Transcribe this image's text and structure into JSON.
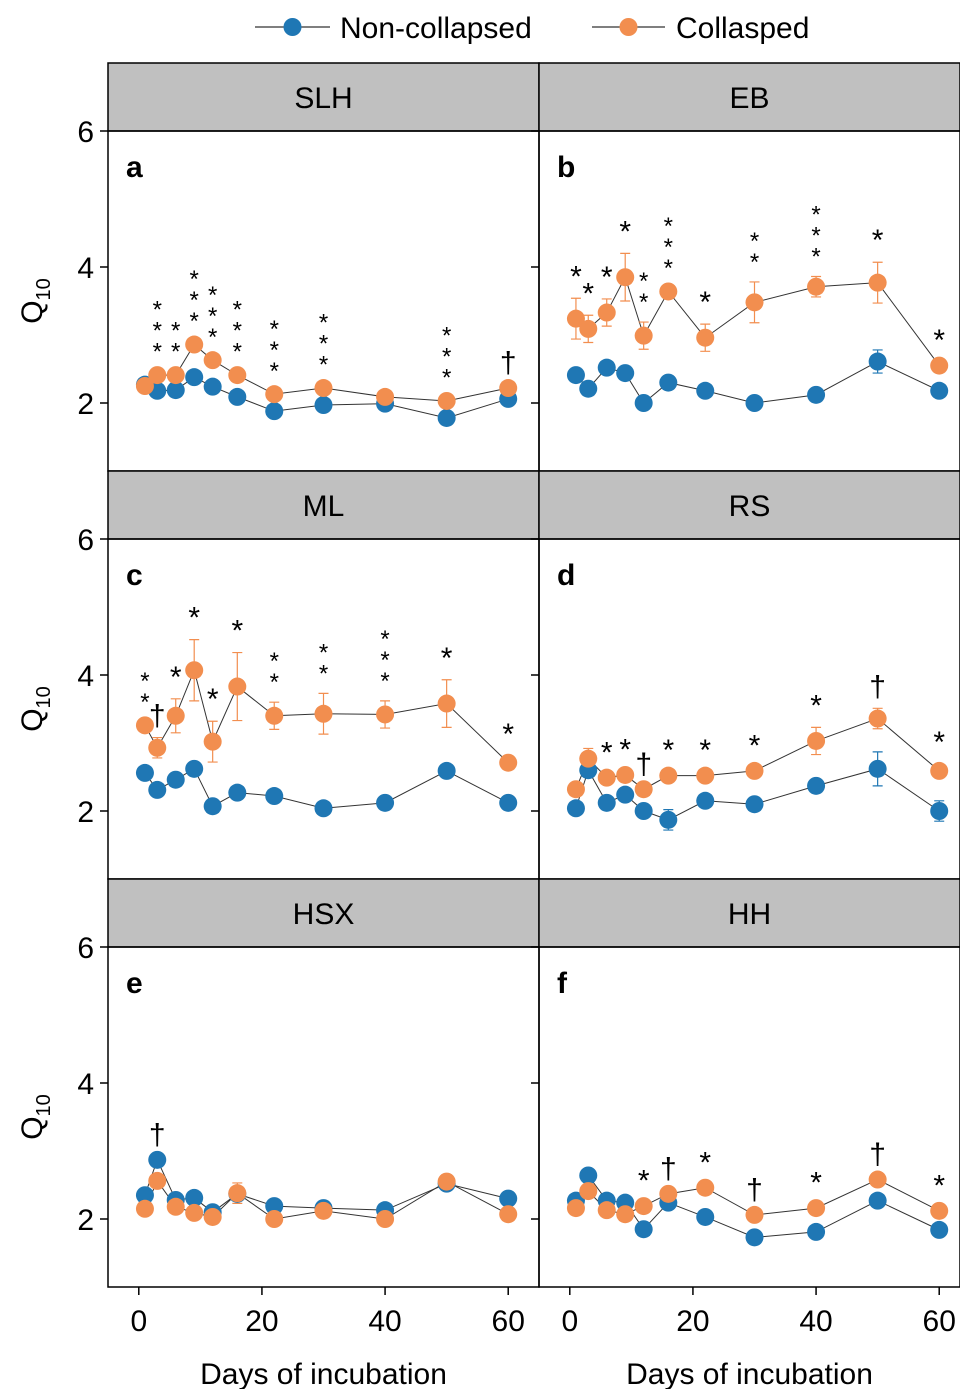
{
  "chart_data": [
    {
      "type": "line",
      "title": "SLH",
      "panel_letter": "a",
      "ylabel": {
        "main": "Q",
        "sub": "10"
      },
      "x": [
        1,
        3,
        6,
        9,
        12,
        16,
        22,
        30,
        40,
        50,
        60
      ],
      "series": [
        {
          "name": "Non-collapsed",
          "color": "#1f77b4",
          "values": [
            2.27,
            2.18,
            2.19,
            2.38,
            2.24,
            2.09,
            1.88,
            1.97,
            1.99,
            1.78,
            2.06
          ],
          "errors": [
            0.05,
            0.05,
            0.05,
            0.05,
            0.05,
            0.05,
            0.05,
            0.05,
            0.05,
            0.05,
            0.05
          ]
        },
        {
          "name": "Collasped",
          "color": "#f28e4f",
          "values": [
            2.25,
            2.41,
            2.41,
            2.86,
            2.63,
            2.41,
            2.13,
            2.22,
            2.09,
            2.03,
            2.22
          ],
          "errors": [
            0.05,
            0.05,
            0.05,
            0.05,
            0.05,
            0.05,
            0.05,
            0.05,
            0.05,
            0.05,
            0.05
          ]
        }
      ],
      "annotations": [
        {
          "x": 3,
          "text": "***"
        },
        {
          "x": 6,
          "text": "**"
        },
        {
          "x": 9,
          "text": "***"
        },
        {
          "x": 12,
          "text": "***"
        },
        {
          "x": 16,
          "text": "***"
        },
        {
          "x": 22,
          "text": "***"
        },
        {
          "x": 30,
          "text": "***"
        },
        {
          "x": 50,
          "text": "***"
        },
        {
          "x": 60,
          "text": "†"
        }
      ],
      "xlim": [
        -5,
        65
      ],
      "xticks": [
        0,
        20,
        40,
        60
      ],
      "ylim": [
        1,
        6
      ],
      "yticks": [
        2,
        4,
        6
      ]
    },
    {
      "type": "line",
      "title": "EB",
      "panel_letter": "b",
      "x": [
        1,
        3,
        6,
        9,
        12,
        16,
        22,
        30,
        40,
        50,
        60
      ],
      "series": [
        {
          "name": "Non-collapsed",
          "color": "#1f77b4",
          "values": [
            2.41,
            2.21,
            2.52,
            2.44,
            2.0,
            2.3,
            2.18,
            2.0,
            2.12,
            2.61,
            2.18
          ],
          "errors": [
            0.05,
            0.1,
            0.05,
            0.1,
            0.05,
            0.05,
            0.05,
            0.05,
            0.05,
            0.17,
            0.05
          ]
        },
        {
          "name": "Collasped",
          "color": "#f28e4f",
          "values": [
            3.24,
            3.09,
            3.33,
            3.85,
            2.99,
            3.64,
            2.96,
            3.48,
            3.71,
            3.77,
            2.55
          ],
          "errors": [
            0.3,
            0.2,
            0.2,
            0.35,
            0.2,
            0.05,
            0.2,
            0.3,
            0.15,
            0.3,
            0.05
          ]
        }
      ],
      "annotations": [
        {
          "x": 1,
          "text": "*"
        },
        {
          "x": 3,
          "text": "*"
        },
        {
          "x": 6,
          "text": "*"
        },
        {
          "x": 9,
          "text": "*"
        },
        {
          "x": 12,
          "text": "**"
        },
        {
          "x": 16,
          "text": "***"
        },
        {
          "x": 22,
          "text": "*"
        },
        {
          "x": 30,
          "text": "**"
        },
        {
          "x": 40,
          "text": "***"
        },
        {
          "x": 50,
          "text": "*"
        },
        {
          "x": 60,
          "text": "*"
        }
      ],
      "xlim": [
        -5,
        65
      ],
      "xticks": [
        0,
        20,
        40,
        60
      ],
      "ylim": [
        1,
        6
      ],
      "yticks": [
        2,
        4,
        6
      ]
    },
    {
      "type": "line",
      "title": "ML",
      "panel_letter": "c",
      "ylabel": {
        "main": "Q",
        "sub": "10"
      },
      "x": [
        1,
        3,
        6,
        9,
        12,
        16,
        22,
        30,
        40,
        50,
        60
      ],
      "series": [
        {
          "name": "Non-collapsed",
          "color": "#1f77b4",
          "values": [
            2.56,
            2.31,
            2.46,
            2.62,
            2.07,
            2.27,
            2.22,
            2.04,
            2.12,
            2.59,
            2.12
          ],
          "errors": [
            0.05,
            0.05,
            0.05,
            0.05,
            0.05,
            0.05,
            0.05,
            0.05,
            0.05,
            0.1,
            0.05
          ]
        },
        {
          "name": "Collasped",
          "color": "#f28e4f",
          "values": [
            3.26,
            2.93,
            3.4,
            4.07,
            3.02,
            3.83,
            3.4,
            3.43,
            3.42,
            3.58,
            2.71
          ],
          "errors": [
            0.05,
            0.15,
            0.25,
            0.45,
            0.3,
            0.5,
            0.2,
            0.3,
            0.2,
            0.35,
            0.1
          ]
        }
      ],
      "annotations": [
        {
          "x": 1,
          "text": "**"
        },
        {
          "x": 3,
          "text": "†"
        },
        {
          "x": 6,
          "text": "*"
        },
        {
          "x": 9,
          "text": "*"
        },
        {
          "x": 12,
          "text": "*"
        },
        {
          "x": 16,
          "text": "*"
        },
        {
          "x": 22,
          "text": "**"
        },
        {
          "x": 30,
          "text": "**"
        },
        {
          "x": 40,
          "text": "***"
        },
        {
          "x": 50,
          "text": "*"
        },
        {
          "x": 60,
          "text": "*"
        }
      ],
      "xlim": [
        -5,
        65
      ],
      "xticks": [
        0,
        20,
        40,
        60
      ],
      "ylim": [
        1,
        6
      ],
      "yticks": [
        2,
        4,
        6
      ]
    },
    {
      "type": "line",
      "title": "RS",
      "panel_letter": "d",
      "x": [
        1,
        3,
        6,
        9,
        12,
        16,
        22,
        30,
        40,
        50,
        60
      ],
      "series": [
        {
          "name": "Non-collapsed",
          "color": "#1f77b4",
          "values": [
            2.04,
            2.6,
            2.12,
            2.24,
            2.0,
            1.87,
            2.15,
            2.1,
            2.37,
            2.62,
            2.0
          ],
          "errors": [
            0.05,
            0.1,
            0.05,
            0.05,
            0.1,
            0.15,
            0.05,
            0.05,
            0.05,
            0.25,
            0.15
          ]
        },
        {
          "name": "Collasped",
          "color": "#f28e4f",
          "values": [
            2.32,
            2.77,
            2.49,
            2.53,
            2.32,
            2.52,
            2.52,
            2.59,
            3.03,
            3.36,
            2.59
          ],
          "errors": [
            0.05,
            0.15,
            0.05,
            0.05,
            0.05,
            0.05,
            0.05,
            0.05,
            0.2,
            0.15,
            0.1
          ]
        }
      ],
      "annotations": [
        {
          "x": 6,
          "text": "*"
        },
        {
          "x": 9,
          "text": "*"
        },
        {
          "x": 12,
          "text": "†"
        },
        {
          "x": 16,
          "text": "*"
        },
        {
          "x": 22,
          "text": "*"
        },
        {
          "x": 30,
          "text": "*"
        },
        {
          "x": 40,
          "text": "*"
        },
        {
          "x": 50,
          "text": "†"
        },
        {
          "x": 60,
          "text": "*"
        }
      ],
      "xlim": [
        -5,
        65
      ],
      "xticks": [
        0,
        20,
        40,
        60
      ],
      "ylim": [
        1,
        6
      ],
      "yticks": [
        2,
        4,
        6
      ]
    },
    {
      "type": "line",
      "title": "HSX",
      "panel_letter": "e",
      "ylabel": {
        "main": "Q",
        "sub": "10"
      },
      "xlabel": "Days of incubation",
      "x": [
        1,
        3,
        6,
        9,
        12,
        16,
        22,
        30,
        40,
        50,
        60
      ],
      "series": [
        {
          "name": "Non-collapsed",
          "color": "#1f77b4",
          "values": [
            2.35,
            2.87,
            2.28,
            2.31,
            2.1,
            2.37,
            2.19,
            2.16,
            2.13,
            2.52,
            2.3
          ],
          "errors": [
            0.05,
            0.05,
            0.05,
            0.05,
            0.05,
            0.05,
            0.05,
            0.05,
            0.05,
            0.1,
            0.1
          ]
        },
        {
          "name": "Collasped",
          "color": "#f28e4f",
          "values": [
            2.15,
            2.56,
            2.18,
            2.09,
            2.03,
            2.38,
            2.0,
            2.12,
            2.0,
            2.55,
            2.07
          ],
          "errors": [
            0.05,
            0.05,
            0.05,
            0.05,
            0.05,
            0.15,
            0.05,
            0.05,
            0.05,
            0.1,
            0.05
          ]
        }
      ],
      "annotations": [
        {
          "x": 3,
          "text": "†"
        }
      ],
      "xlim": [
        -5,
        65
      ],
      "xticks": [
        0,
        20,
        40,
        60
      ],
      "ylim": [
        1,
        6
      ],
      "yticks": [
        2,
        4,
        6
      ]
    },
    {
      "type": "line",
      "title": "HH",
      "panel_letter": "f",
      "xlabel": "Days of incubation",
      "x": [
        1,
        3,
        6,
        9,
        12,
        16,
        22,
        30,
        40,
        50,
        60
      ],
      "series": [
        {
          "name": "Non-collapsed",
          "color": "#1f77b4",
          "values": [
            2.27,
            2.64,
            2.27,
            2.24,
            1.85,
            2.24,
            2.03,
            1.73,
            1.81,
            2.27,
            1.84
          ],
          "errors": [
            0.05,
            0.05,
            0.1,
            0.05,
            0.05,
            0.05,
            0.05,
            0.05,
            0.05,
            0.05,
            0.05
          ]
        },
        {
          "name": "Collasped",
          "color": "#f28e4f",
          "values": [
            2.16,
            2.41,
            2.13,
            2.07,
            2.19,
            2.37,
            2.46,
            2.06,
            2.16,
            2.58,
            2.12
          ],
          "errors": [
            0.05,
            0.05,
            0.05,
            0.05,
            0.05,
            0.05,
            0.05,
            0.05,
            0.05,
            0.05,
            0.05
          ]
        }
      ],
      "annotations": [
        {
          "x": 12,
          "text": "*"
        },
        {
          "x": 16,
          "text": "†"
        },
        {
          "x": 22,
          "text": "*"
        },
        {
          "x": 30,
          "text": "†"
        },
        {
          "x": 40,
          "text": "*"
        },
        {
          "x": 50,
          "text": "†"
        },
        {
          "x": 60,
          "text": "*"
        }
      ],
      "xlim": [
        -5,
        65
      ],
      "xticks": [
        0,
        20,
        40,
        60
      ],
      "ylim": [
        1,
        6
      ],
      "yticks": [
        2,
        4,
        6
      ]
    }
  ]
}
